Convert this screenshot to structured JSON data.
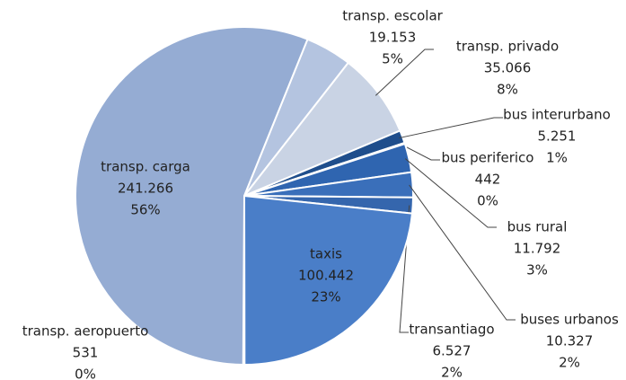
{
  "chart_data": {
    "type": "pie",
    "categories": [
      "transp. escolar",
      "transp. privado",
      "bus interurbano",
      "bus periferico",
      "bus rural",
      "buses urbanos",
      "transantiago",
      "taxis",
      "transp. aeropuerto",
      "transp. carga"
    ],
    "values": [
      19153,
      35066,
      5251,
      442,
      11792,
      10327,
      6527,
      100442,
      531,
      241266
    ],
    "value_labels": [
      "19.153",
      "35.066",
      "5.251",
      "442",
      "11.792",
      "10.327",
      "6.527",
      "100.442",
      "531",
      "241.266"
    ],
    "percent_labels": [
      "5%",
      "8%",
      "1%",
      "0%",
      "3%",
      "2%",
      "2%",
      "23%",
      "0%",
      "56%"
    ],
    "colors": [
      "#b4c4e0",
      "#c9d3e4",
      "#1f4e8c",
      "#2a5ea5",
      "#2f65b0",
      "#3a6fba",
      "#3566ad",
      "#4a7ec8",
      "#4a76b8",
      "#95acd3"
    ]
  }
}
